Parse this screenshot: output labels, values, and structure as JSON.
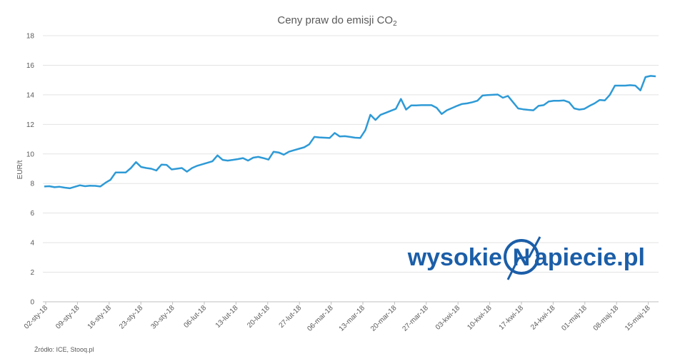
{
  "chart_data": {
    "type": "line",
    "title": "Ceny praw do emisji CO",
    "title_subscript": "2",
    "ylabel": "EUR/t",
    "xlabel": "",
    "ylim": [
      0,
      18
    ],
    "yticks": [
      0,
      2,
      4,
      6,
      8,
      10,
      12,
      14,
      16,
      18
    ],
    "grid": true,
    "legend": "none",
    "line_color": "#2e9ad6",
    "x_tick_labels": [
      "02-sty-18",
      "09-sty-18",
      "16-sty-18",
      "23-sty-18",
      "30-sty-18",
      "06-lut-18",
      "13-lut-18",
      "20-lut-18",
      "27-lut-18",
      "06-mar-18",
      "13-mar-18",
      "20-mar-18",
      "27-mar-18",
      "03-kwi-18",
      "10-kwi-18",
      "17-kwi-18",
      "24-kwi-18",
      "01-maj-18",
      "08-maj-18",
      "15-maj-18"
    ],
    "series": [
      {
        "values": [
          7.8,
          7.82,
          7.75,
          7.78,
          7.72,
          7.68,
          7.78,
          7.88,
          7.82,
          7.85,
          7.84,
          7.8,
          8.05,
          8.25,
          8.75,
          8.75,
          8.75,
          9.05,
          9.45,
          9.12,
          9.05,
          9.0,
          8.88,
          9.28,
          9.26,
          8.95,
          9.0,
          9.05,
          8.8,
          9.05,
          9.2,
          9.3,
          9.4,
          9.5,
          9.9,
          9.6,
          9.55,
          9.6,
          9.65,
          9.72,
          9.55,
          9.75,
          9.8,
          9.72,
          9.62,
          10.15,
          10.1,
          9.95,
          10.15,
          10.25,
          10.35,
          10.45,
          10.65,
          11.15,
          11.12,
          11.1,
          11.08,
          11.42,
          11.18,
          11.2,
          11.15,
          11.1,
          11.08,
          11.6,
          12.65,
          12.3,
          12.65,
          12.78,
          12.92,
          13.05,
          13.72,
          13.0,
          13.28,
          13.28,
          13.3,
          13.3,
          13.3,
          13.12,
          12.7,
          12.95,
          13.1,
          13.25,
          13.38,
          13.42,
          13.5,
          13.6,
          13.95,
          13.98,
          14.0,
          14.02,
          13.8,
          13.92,
          13.5,
          13.08,
          13.02,
          12.98,
          12.95,
          13.25,
          13.3,
          13.55,
          13.6,
          13.6,
          13.62,
          13.5,
          13.08,
          13.0,
          13.05,
          13.25,
          13.42,
          13.65,
          13.62,
          14.0,
          14.62,
          14.62,
          14.62,
          14.65,
          14.62,
          14.3,
          15.2,
          15.28,
          15.25
        ]
      }
    ]
  },
  "logo": {
    "left": "wysokie",
    "mark_letter": "N",
    "right": "apiecie.pl",
    "color": "#1b5ea8"
  },
  "source": "Źródło: ICE, Stooq.pl"
}
